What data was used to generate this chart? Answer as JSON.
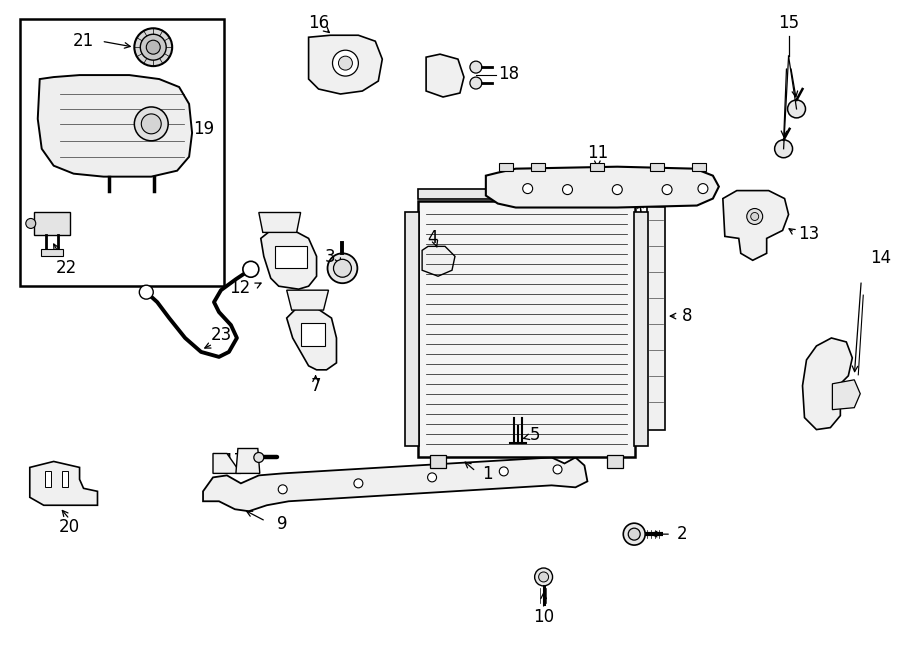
{
  "bg_color": "#ffffff",
  "line_color": "#000000",
  "fig_width": 9.0,
  "fig_height": 6.61
}
